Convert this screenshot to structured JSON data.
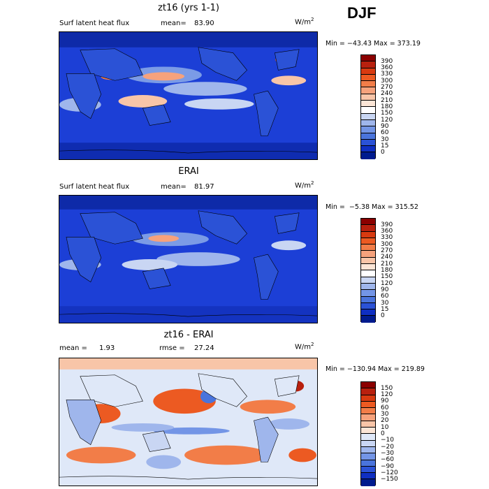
{
  "season": "DJF",
  "panels": [
    {
      "title": "zt16 (yrs 1-1)",
      "var_label": "Surf latent heat flux",
      "stat_label": "mean=",
      "stat_value": "83.90",
      "units_base": "W/m",
      "units_exp": "2",
      "minmax": "Min = −43.43 Max = 373.19",
      "colorbar": {
        "ticks": [
          "390",
          "360",
          "330",
          "300",
          "270",
          "240",
          "210",
          "180",
          "150",
          "120",
          "90",
          "60",
          "30",
          "15",
          "0"
        ],
        "colors": [
          "#8b0000",
          "#b8200e",
          "#d83a10",
          "#ec5a22",
          "#f27d48",
          "#f6a27c",
          "#f8c5a8",
          "#fbe5d6",
          "#ffffff",
          "#c9d6f3",
          "#9fb6ec",
          "#7395e6",
          "#4a74dc",
          "#2b52d6",
          "#0f2fc2",
          "#001b8e"
        ]
      }
    },
    {
      "title": "ERAI",
      "var_label": "Surf latent heat flux",
      "stat_label": "mean=",
      "stat_value": "81.97",
      "units_base": "W/m",
      "units_exp": "2",
      "minmax": "Min =  −5.38 Max = 315.52",
      "colorbar": {
        "ticks": [
          "390",
          "360",
          "330",
          "300",
          "270",
          "240",
          "210",
          "180",
          "150",
          "120",
          "90",
          "60",
          "30",
          "15",
          "0"
        ],
        "colors": [
          "#8b0000",
          "#b8200e",
          "#d83a10",
          "#ec5a22",
          "#f27d48",
          "#f6a27c",
          "#f8c5a8",
          "#fbe5d6",
          "#ffffff",
          "#c9d6f3",
          "#9fb6ec",
          "#7395e6",
          "#4a74dc",
          "#2b52d6",
          "#0f2fc2",
          "#001b8e"
        ]
      }
    },
    {
      "title": "zt16 - ERAI",
      "var_label": "mean =",
      "stat_label": "rmse =",
      "stat_value": "27.24",
      "mean_value": "1.93",
      "units_base": "W/m",
      "units_exp": "2",
      "minmax": "Min = −130.94 Max = 219.89",
      "colorbar": {
        "ticks": [
          "150",
          "120",
          "90",
          "60",
          "30",
          "20",
          "10",
          "0",
          "−10",
          "−20",
          "−30",
          "−60",
          "−90",
          "−120",
          "−150"
        ],
        "colors": [
          "#8b0000",
          "#b8200e",
          "#d83a10",
          "#ec5a22",
          "#f27d48",
          "#f6a27c",
          "#f8c5a8",
          "#fbe5d6",
          "#dfe8f8",
          "#c9d6f3",
          "#9fb6ec",
          "#7395e6",
          "#4a74dc",
          "#2b52d6",
          "#0f2fc2",
          "#001b8e"
        ]
      }
    }
  ]
}
